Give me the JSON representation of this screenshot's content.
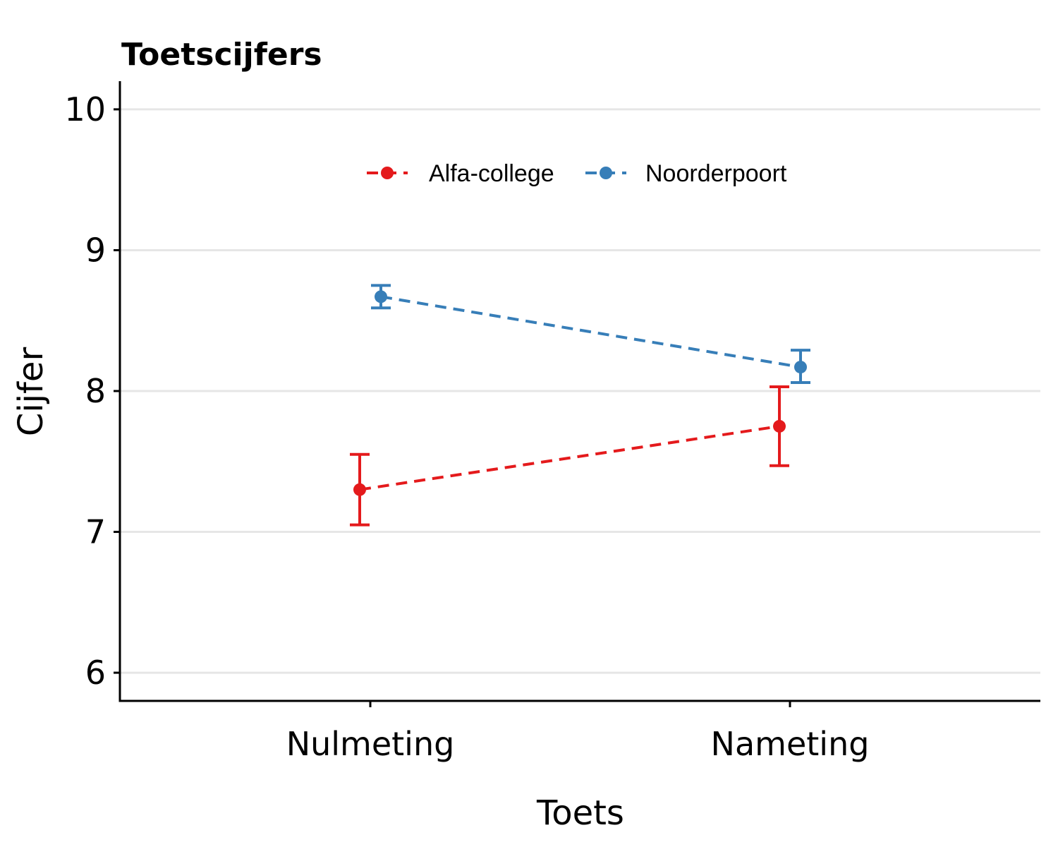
{
  "chart_data": {
    "type": "line",
    "title": "Toetscijfers",
    "xlabel": "Toets",
    "ylabel": "Cijfer",
    "categories": [
      "Nulmeting",
      "Nameting"
    ],
    "ylim": [
      5.8,
      10.2
    ],
    "yticks": [
      6,
      7,
      8,
      9,
      10
    ],
    "grid": "horizontal",
    "legend_position": "top-center",
    "series": [
      {
        "name": "Alfa-college",
        "color": "#e41a1c",
        "values": [
          7.3,
          7.75
        ],
        "error_low": [
          7.05,
          7.47
        ],
        "error_high": [
          7.55,
          8.03
        ]
      },
      {
        "name": "Noorderpoort",
        "color": "#377eb8",
        "values": [
          8.67,
          8.17
        ],
        "error_low": [
          8.59,
          8.06
        ],
        "error_high": [
          8.75,
          8.29
        ]
      }
    ]
  }
}
